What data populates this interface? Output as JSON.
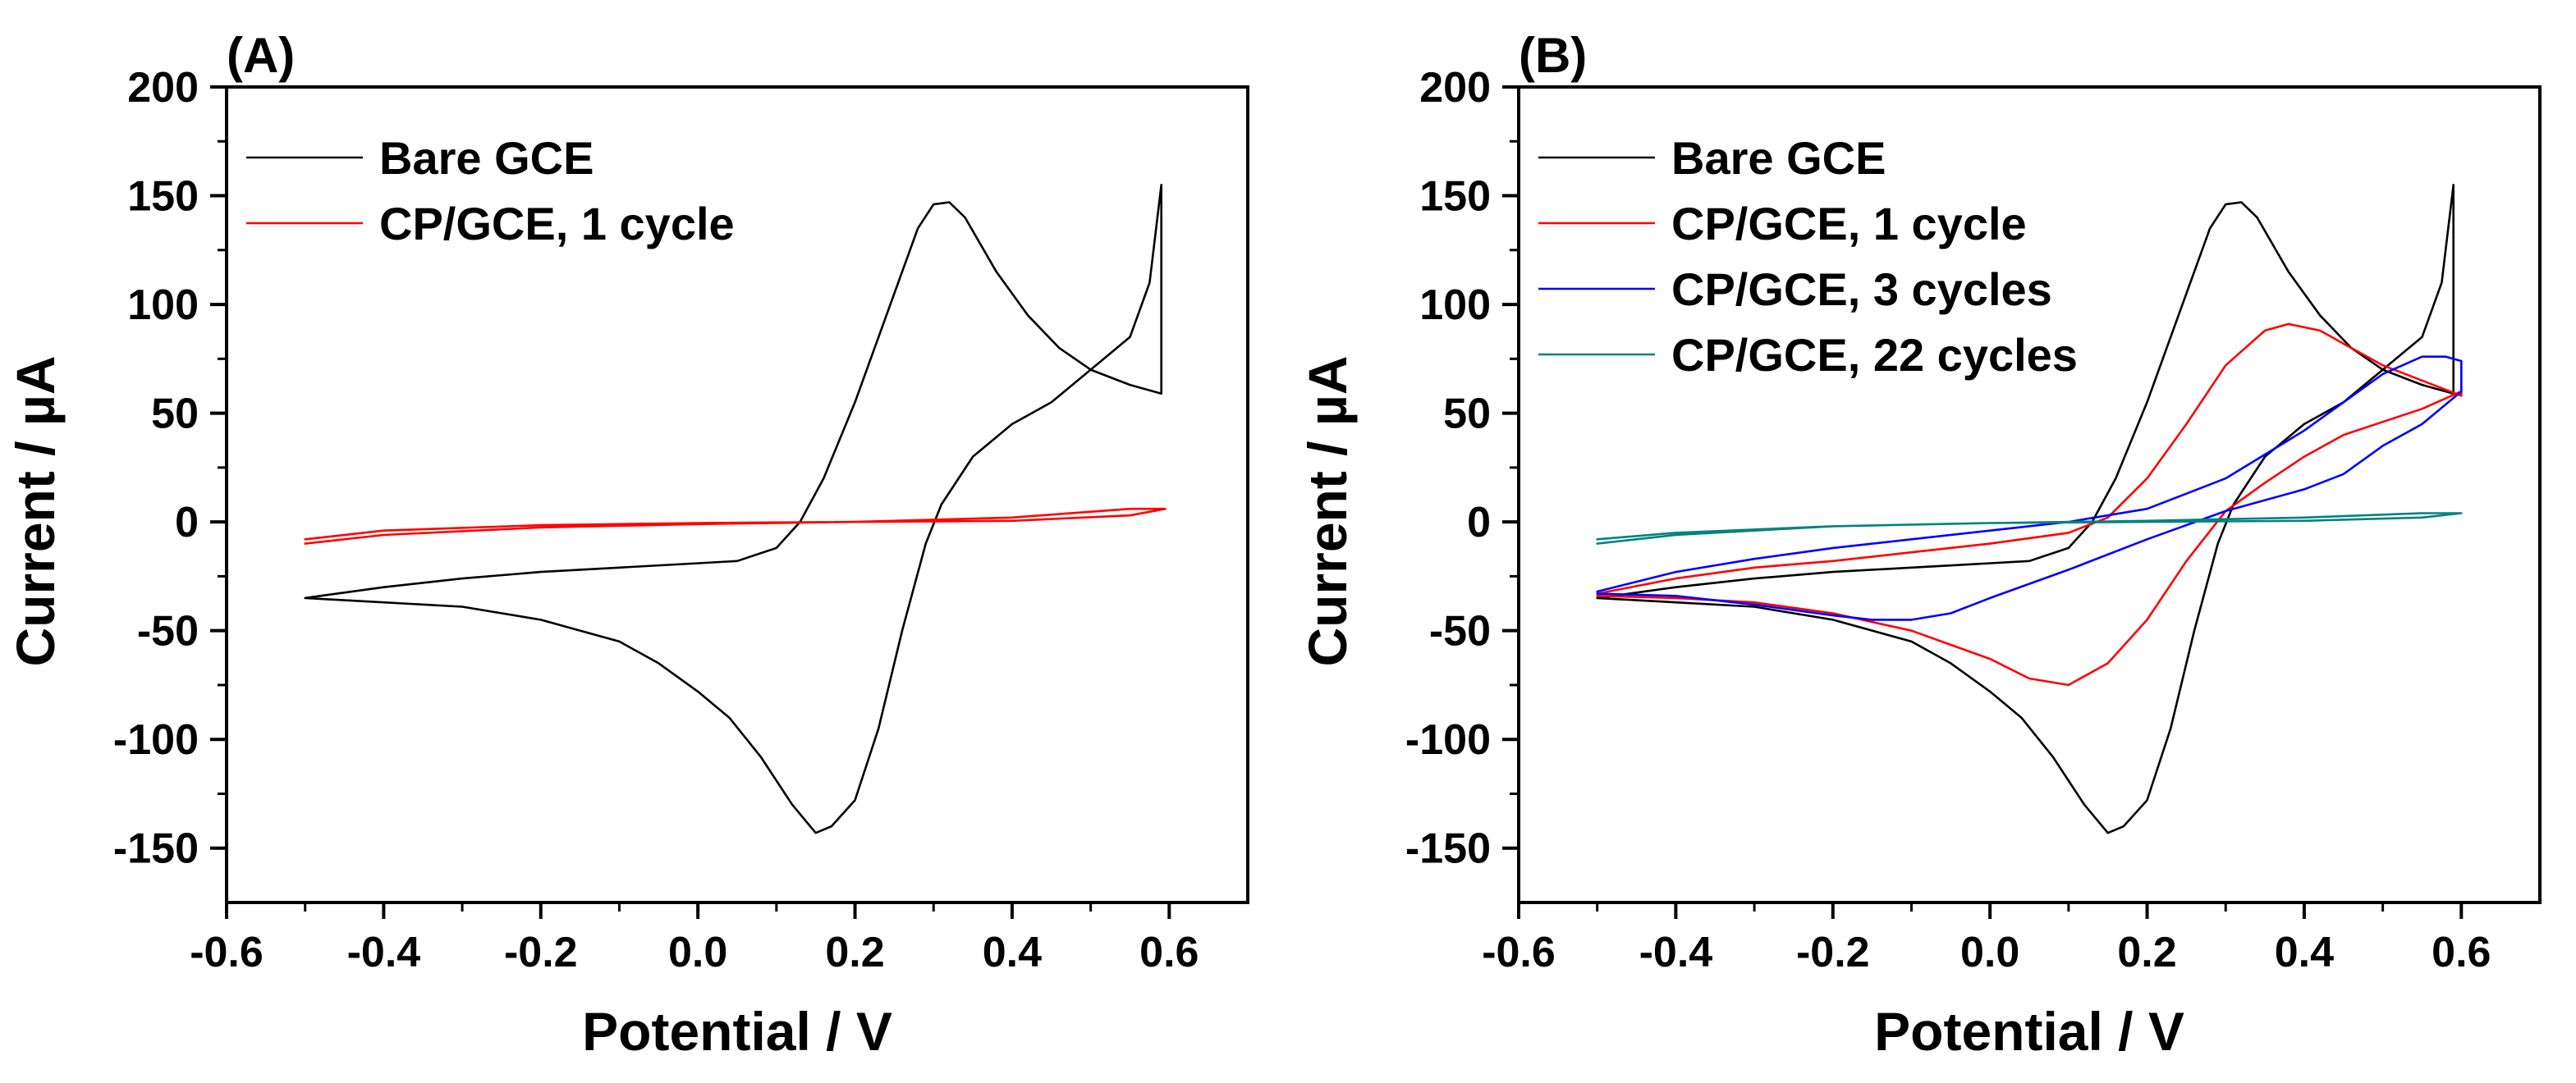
{
  "chart_data": [
    {
      "type": "line",
      "panel_label": "(A)",
      "xlabel": "Potential / V",
      "ylabel": "Current / µA",
      "xlim": [
        -0.6,
        0.7
      ],
      "ylim": [
        -175,
        200
      ],
      "x_ticks": [
        -0.6,
        -0.4,
        -0.2,
        0.0,
        0.2,
        0.4,
        0.6
      ],
      "x_tick_labels": [
        "-0.6",
        "-0.4",
        "-0.2",
        "0.0",
        "0.2",
        "0.4",
        "0.6"
      ],
      "y_ticks": [
        -150,
        -100,
        -50,
        0,
        50,
        100,
        150,
        200
      ],
      "y_tick_labels": [
        "-150",
        "-100",
        "-50",
        "0",
        "50",
        "100",
        "150",
        "200"
      ],
      "grid": false,
      "legend_position": "top-left",
      "series": [
        {
          "name": "Bare GCE",
          "color": "#000000",
          "x": [
            -0.5,
            -0.4,
            -0.3,
            -0.2,
            -0.1,
            0.0,
            0.05,
            0.1,
            0.13,
            0.16,
            0.2,
            0.24,
            0.28,
            0.3,
            0.32,
            0.34,
            0.38,
            0.42,
            0.46,
            0.5,
            0.55,
            0.59,
            0.59,
            0.575,
            0.55,
            0.5,
            0.45,
            0.4,
            0.35,
            0.31,
            0.29,
            0.26,
            0.23,
            0.2,
            0.17,
            0.15,
            0.12,
            0.08,
            0.04,
            0.0,
            -0.05,
            -0.1,
            -0.2,
            -0.3,
            -0.4,
            -0.5
          ],
          "y": [
            -35,
            -30,
            -26,
            -23,
            -21,
            -19,
            -18,
            -12,
            0,
            20,
            55,
            95,
            135,
            146,
            147,
            140,
            115,
            95,
            80,
            70,
            63,
            59,
            155,
            110,
            85,
            70,
            55,
            45,
            30,
            8,
            -10,
            -50,
            -95,
            -128,
            -140,
            -143,
            -130,
            -108,
            -90,
            -78,
            -65,
            -55,
            -45,
            -39,
            -37,
            -35
          ]
        },
        {
          "name": "CP/GCE, 1 cycle",
          "color": "#ff0000",
          "x": [
            -0.5,
            -0.4,
            -0.2,
            0.0,
            0.2,
            0.4,
            0.55,
            0.595,
            0.55,
            0.4,
            0.2,
            0.0,
            -0.2,
            -0.4,
            -0.5
          ],
          "y": [
            -8,
            -4,
            -1.5,
            -0.5,
            0,
            0.5,
            3,
            6,
            6,
            2,
            0,
            -1,
            -2.5,
            -6,
            -10
          ]
        }
      ]
    },
    {
      "type": "line",
      "panel_label": "(B)",
      "xlabel": "Potential / V",
      "ylabel": "Current / µA",
      "xlim": [
        -0.6,
        0.7
      ],
      "ylim": [
        -175,
        200
      ],
      "x_ticks": [
        -0.6,
        -0.4,
        -0.2,
        0.0,
        0.2,
        0.4,
        0.6
      ],
      "x_tick_labels": [
        "-0.6",
        "-0.4",
        "-0.2",
        "0.0",
        "0.2",
        "0.4",
        "0.6"
      ],
      "y_ticks": [
        -150,
        -100,
        -50,
        0,
        50,
        100,
        150,
        200
      ],
      "y_tick_labels": [
        "-150",
        "-100",
        "-50",
        "0",
        "50",
        "100",
        "150",
        "200"
      ],
      "grid": false,
      "legend_position": "top-left",
      "series": [
        {
          "name": "Bare GCE",
          "color": "#000000",
          "x": [
            -0.5,
            -0.4,
            -0.3,
            -0.2,
            -0.1,
            0.0,
            0.05,
            0.1,
            0.13,
            0.16,
            0.2,
            0.24,
            0.28,
            0.3,
            0.32,
            0.34,
            0.38,
            0.42,
            0.46,
            0.5,
            0.55,
            0.59,
            0.59,
            0.575,
            0.55,
            0.5,
            0.45,
            0.4,
            0.35,
            0.31,
            0.29,
            0.26,
            0.23,
            0.2,
            0.17,
            0.15,
            0.12,
            0.08,
            0.04,
            0.0,
            -0.05,
            -0.1,
            -0.2,
            -0.3,
            -0.4,
            -0.5
          ],
          "y": [
            -35,
            -30,
            -26,
            -23,
            -21,
            -19,
            -18,
            -12,
            0,
            20,
            55,
            95,
            135,
            146,
            147,
            140,
            115,
            95,
            80,
            70,
            63,
            59,
            155,
            110,
            85,
            70,
            55,
            45,
            30,
            8,
            -10,
            -50,
            -95,
            -128,
            -140,
            -143,
            -130,
            -108,
            -90,
            -78,
            -65,
            -55,
            -45,
            -39,
            -37,
            -35
          ]
        },
        {
          "name": "CP/GCE, 1 cycle",
          "color": "#ff0000",
          "x": [
            -0.5,
            -0.4,
            -0.3,
            -0.2,
            -0.1,
            0.0,
            0.1,
            0.15,
            0.2,
            0.25,
            0.3,
            0.35,
            0.38,
            0.42,
            0.46,
            0.5,
            0.55,
            0.6,
            0.6,
            0.55,
            0.5,
            0.45,
            0.4,
            0.35,
            0.3,
            0.25,
            0.2,
            0.15,
            0.1,
            0.05,
            0.0,
            -0.1,
            -0.2,
            -0.3,
            -0.4,
            -0.5
          ],
          "y": [
            -33,
            -26,
            -21,
            -18,
            -14,
            -10,
            -5,
            2,
            20,
            45,
            72,
            88,
            91,
            88,
            80,
            72,
            65,
            58,
            60,
            52,
            46,
            40,
            30,
            18,
            5,
            -18,
            -45,
            -65,
            -75,
            -72,
            -63,
            -50,
            -42,
            -37,
            -35,
            -34
          ]
        },
        {
          "name": "CP/GCE, 3 cycles",
          "color": "#0000ff",
          "x": [
            -0.5,
            -0.4,
            -0.3,
            -0.2,
            -0.1,
            0.0,
            0.1,
            0.2,
            0.3,
            0.4,
            0.45,
            0.5,
            0.55,
            0.58,
            0.6,
            0.6,
            0.55,
            0.5,
            0.45,
            0.4,
            0.3,
            0.2,
            0.1,
            0.0,
            -0.05,
            -0.1,
            -0.15,
            -0.2,
            -0.3,
            -0.4,
            -0.5
          ],
          "y": [
            -32,
            -23,
            -17,
            -12,
            -8,
            -4,
            0,
            6,
            20,
            42,
            55,
            68,
            76,
            76,
            74,
            60,
            45,
            35,
            22,
            15,
            5,
            -8,
            -22,
            -35,
            -42,
            -45,
            -45,
            -43,
            -38,
            -34,
            -33
          ]
        },
        {
          "name": "CP/GCE, 22 cycles",
          "color": "#00827f",
          "x": [
            -0.5,
            -0.4,
            -0.2,
            0.0,
            0.2,
            0.4,
            0.55,
            0.6,
            0.55,
            0.4,
            0.2,
            0.0,
            -0.2,
            -0.4,
            -0.5
          ],
          "y": [
            -10,
            -6,
            -2,
            -0.5,
            0,
            0.5,
            2,
            4,
            4,
            2,
            0.5,
            -0.5,
            -2,
            -5,
            -8
          ]
        }
      ]
    }
  ]
}
